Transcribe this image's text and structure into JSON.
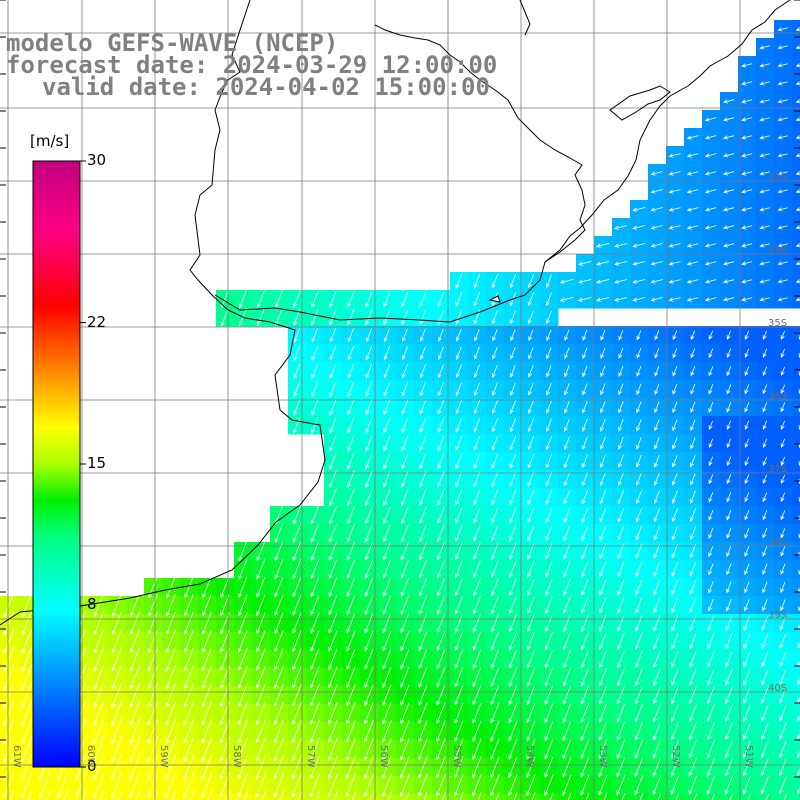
{
  "title": {
    "line1": "modelo GEFS-WAVE (NCEP)",
    "line2": "forecast date: 2024-03-29 12:00:00",
    "line3": "valid date: 2024-04-02 15:00:00"
  },
  "colorbar": {
    "unit": "[m/s]",
    "ticks": [
      {
        "value": 30,
        "label": "30"
      },
      {
        "value": 22,
        "label": "22"
      },
      {
        "value": 15,
        "label": "15"
      },
      {
        "value": 8,
        "label": "8"
      },
      {
        "value": 0,
        "label": "0"
      }
    ],
    "range": [
      0,
      30
    ]
  },
  "map_labels": {
    "lat_labels": [
      "33S",
      "34S",
      "35S",
      "36S",
      "37S",
      "38S",
      "39S",
      "40S"
    ],
    "lon_labels": [
      "61W",
      "60W",
      "59W",
      "58W",
      "57W",
      "56W",
      "55W",
      "54W",
      "53W",
      "52W",
      "51W"
    ]
  },
  "colors": {
    "land": "#ffffff",
    "coast": "#000000",
    "grid": "#808080",
    "arrows": "#ffffff",
    "title": "#808080"
  }
}
